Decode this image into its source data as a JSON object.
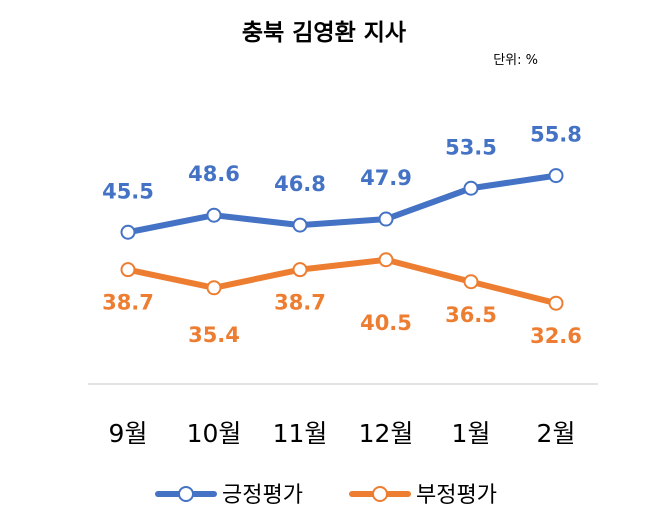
{
  "chart_data": {
    "type": "line",
    "title": "충북 김영환 지사",
    "unit_label": "단위: %",
    "categories": [
      "9월",
      "10월",
      "11월",
      "12월",
      "1월",
      "2월"
    ],
    "series": [
      {
        "name": "긍정평가",
        "color": "#4472C4",
        "values": [
          45.5,
          48.6,
          46.8,
          47.9,
          53.5,
          55.8
        ],
        "value_labels": [
          "45.5",
          "48.6",
          "46.8",
          "47.9",
          "53.5",
          "55.8"
        ]
      },
      {
        "name": "부정평가",
        "color": "#ED7D31",
        "values": [
          38.7,
          35.4,
          38.7,
          40.5,
          36.5,
          32.6
        ],
        "value_labels": [
          "38.7",
          "35.4",
          "38.7",
          "40.5",
          "36.5",
          "32.6"
        ]
      }
    ],
    "xlabel": "",
    "ylabel": "",
    "grid": false,
    "legend": "bottom",
    "axis_color": "#D9D9D9"
  }
}
